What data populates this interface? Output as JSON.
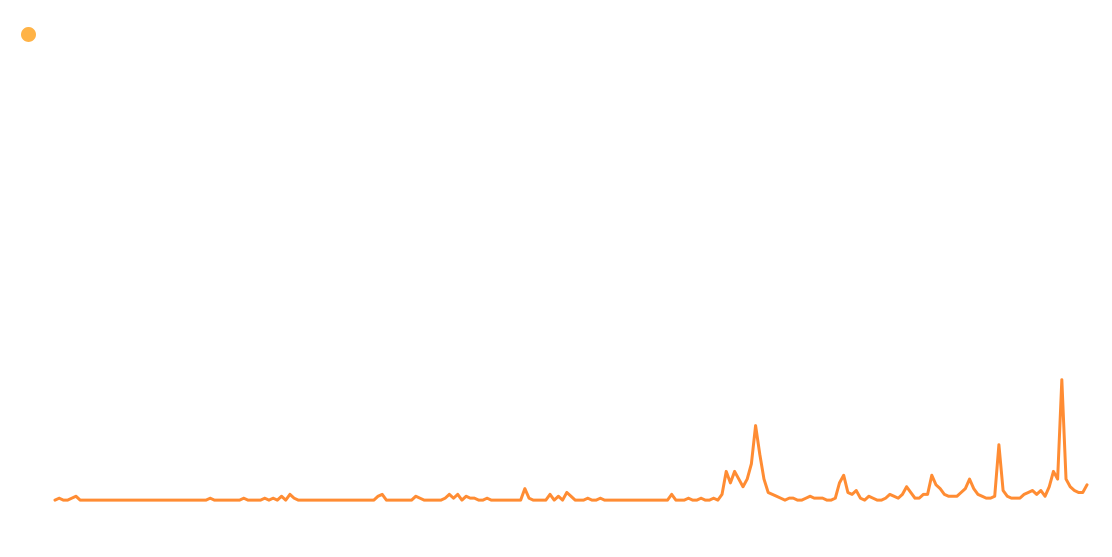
{
  "chart_data": {
    "type": "line",
    "title": "",
    "xlabel": "",
    "ylabel": "",
    "grid": false,
    "axes_visible": false,
    "legend": {
      "placement": "top-left",
      "marker": "dot",
      "marker_color": "#FFB347"
    },
    "line_color": "#FF8C33",
    "ylim": [
      0,
      200
    ],
    "series": [
      {
        "values": [
          1,
          2,
          1,
          1,
          2,
          3,
          1,
          1,
          1,
          1,
          1,
          1,
          1,
          1,
          1,
          1,
          1,
          1,
          1,
          1,
          1,
          1,
          1,
          1,
          1,
          1,
          1,
          1,
          1,
          1,
          1,
          1,
          1,
          1,
          1,
          1,
          1,
          2,
          1,
          1,
          1,
          1,
          1,
          1,
          1,
          2,
          1,
          1,
          1,
          1,
          2,
          1,
          2,
          1,
          3,
          1,
          4,
          2,
          1,
          1,
          1,
          1,
          1,
          1,
          1,
          1,
          1,
          1,
          1,
          1,
          1,
          1,
          1,
          1,
          1,
          1,
          1,
          3,
          4,
          1,
          1,
          1,
          1,
          1,
          1,
          1,
          3,
          2,
          1,
          1,
          1,
          1,
          1,
          2,
          4,
          2,
          4,
          1,
          3,
          2,
          2,
          1,
          1,
          2,
          1,
          1,
          1,
          1,
          1,
          1,
          1,
          1,
          7,
          2,
          1,
          1,
          1,
          1,
          4,
          1,
          3,
          1,
          5,
          3,
          1,
          1,
          1,
          2,
          1,
          1,
          2,
          1,
          1,
          1,
          1,
          1,
          1,
          1,
          1,
          1,
          1,
          1,
          1,
          1,
          1,
          1,
          1,
          4,
          1,
          1,
          1,
          2,
          1,
          1,
          2,
          1,
          1,
          2,
          1,
          4,
          16,
          10,
          16,
          12,
          8,
          12,
          20,
          40,
          25,
          12,
          5,
          4,
          3,
          2,
          1,
          2,
          2,
          1,
          1,
          2,
          3,
          2,
          2,
          2,
          1,
          1,
          2,
          10,
          14,
          5,
          4,
          6,
          2,
          1,
          3,
          2,
          1,
          1,
          2,
          4,
          3,
          2,
          4,
          8,
          5,
          2,
          2,
          4,
          4,
          14,
          9,
          7,
          4,
          3,
          3,
          3,
          5,
          7,
          12,
          7,
          4,
          3,
          2,
          2,
          3,
          30,
          6,
          3,
          2,
          2,
          2,
          4,
          5,
          6,
          4,
          6,
          3,
          8,
          16,
          12,
          64,
          12,
          8,
          6,
          5,
          5,
          9
        ],
        "color": "#FF8C33"
      }
    ]
  }
}
